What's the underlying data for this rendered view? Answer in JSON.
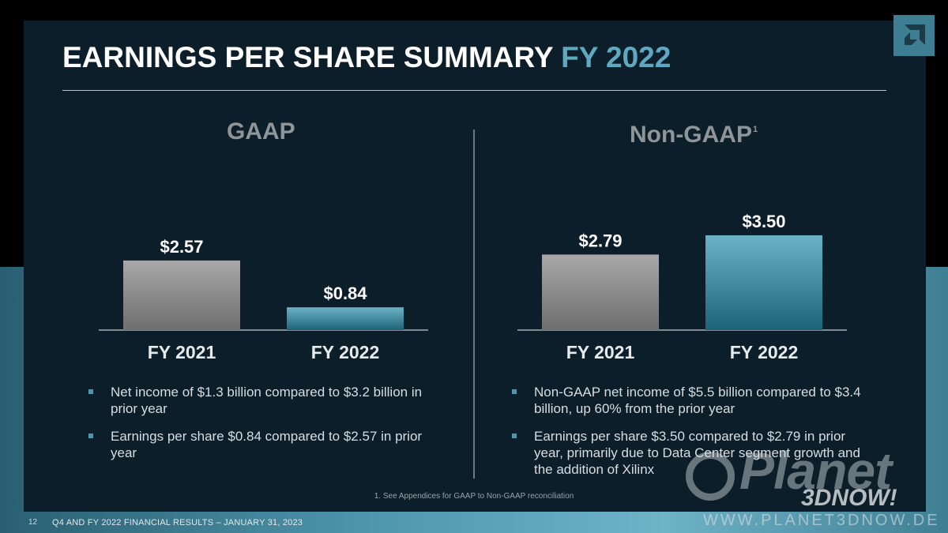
{
  "header": {
    "title_main": "EARNINGS PER SHARE SUMMARY",
    "title_accent": "FY 2022"
  },
  "logo": {
    "icon": "amd-arrow-logo-icon",
    "color": "#3d7e92"
  },
  "colors": {
    "background": "#0c1e2a",
    "accent": "#5fa9c0",
    "bar_fy2021": "#8e8e8e",
    "bar_fy2022": "#4f97ad"
  },
  "chart_data": [
    {
      "type": "bar",
      "title": "GAAP",
      "categories": [
        "FY 2021",
        "FY 2022"
      ],
      "values": [
        2.57,
        0.84
      ],
      "value_labels": [
        "$2.57",
        "$0.84"
      ],
      "ylim": [
        0,
        3.5
      ],
      "grid": false,
      "legend": "none"
    },
    {
      "type": "bar",
      "title": "Non-GAAP",
      "title_superscript": "1",
      "categories": [
        "FY 2021",
        "FY 2022"
      ],
      "values": [
        2.79,
        3.5
      ],
      "value_labels": [
        "$2.79",
        "$3.50"
      ],
      "ylim": [
        0,
        3.5
      ],
      "grid": false,
      "legend": "none"
    }
  ],
  "gaap_bullets": [
    "Net income of $1.3 billion compared to $3.2 billion in prior year",
    "Earnings per share $0.84 compared to $2.57 in prior year"
  ],
  "nongaap_bullets": [
    "Non-GAAP net income of $5.5 billion compared to $3.4 billion, up 60% from the prior year",
    "Earnings per share $3.50 compared to $2.79 in prior year, primarily due to Data Center segment growth and the addition of Xilinx"
  ],
  "footnote": "1. See Appendices for GAAP to Non-GAAP reconciliation",
  "footer": {
    "page_number": "12",
    "text": "Q4 AND FY 2022 FINANCIAL RESULTS – JANUARY 31, 2023"
  },
  "watermark": {
    "word": "Planet",
    "sub": "3DNOW!",
    "url": "WWW.PLANET3DNOW.DE"
  }
}
